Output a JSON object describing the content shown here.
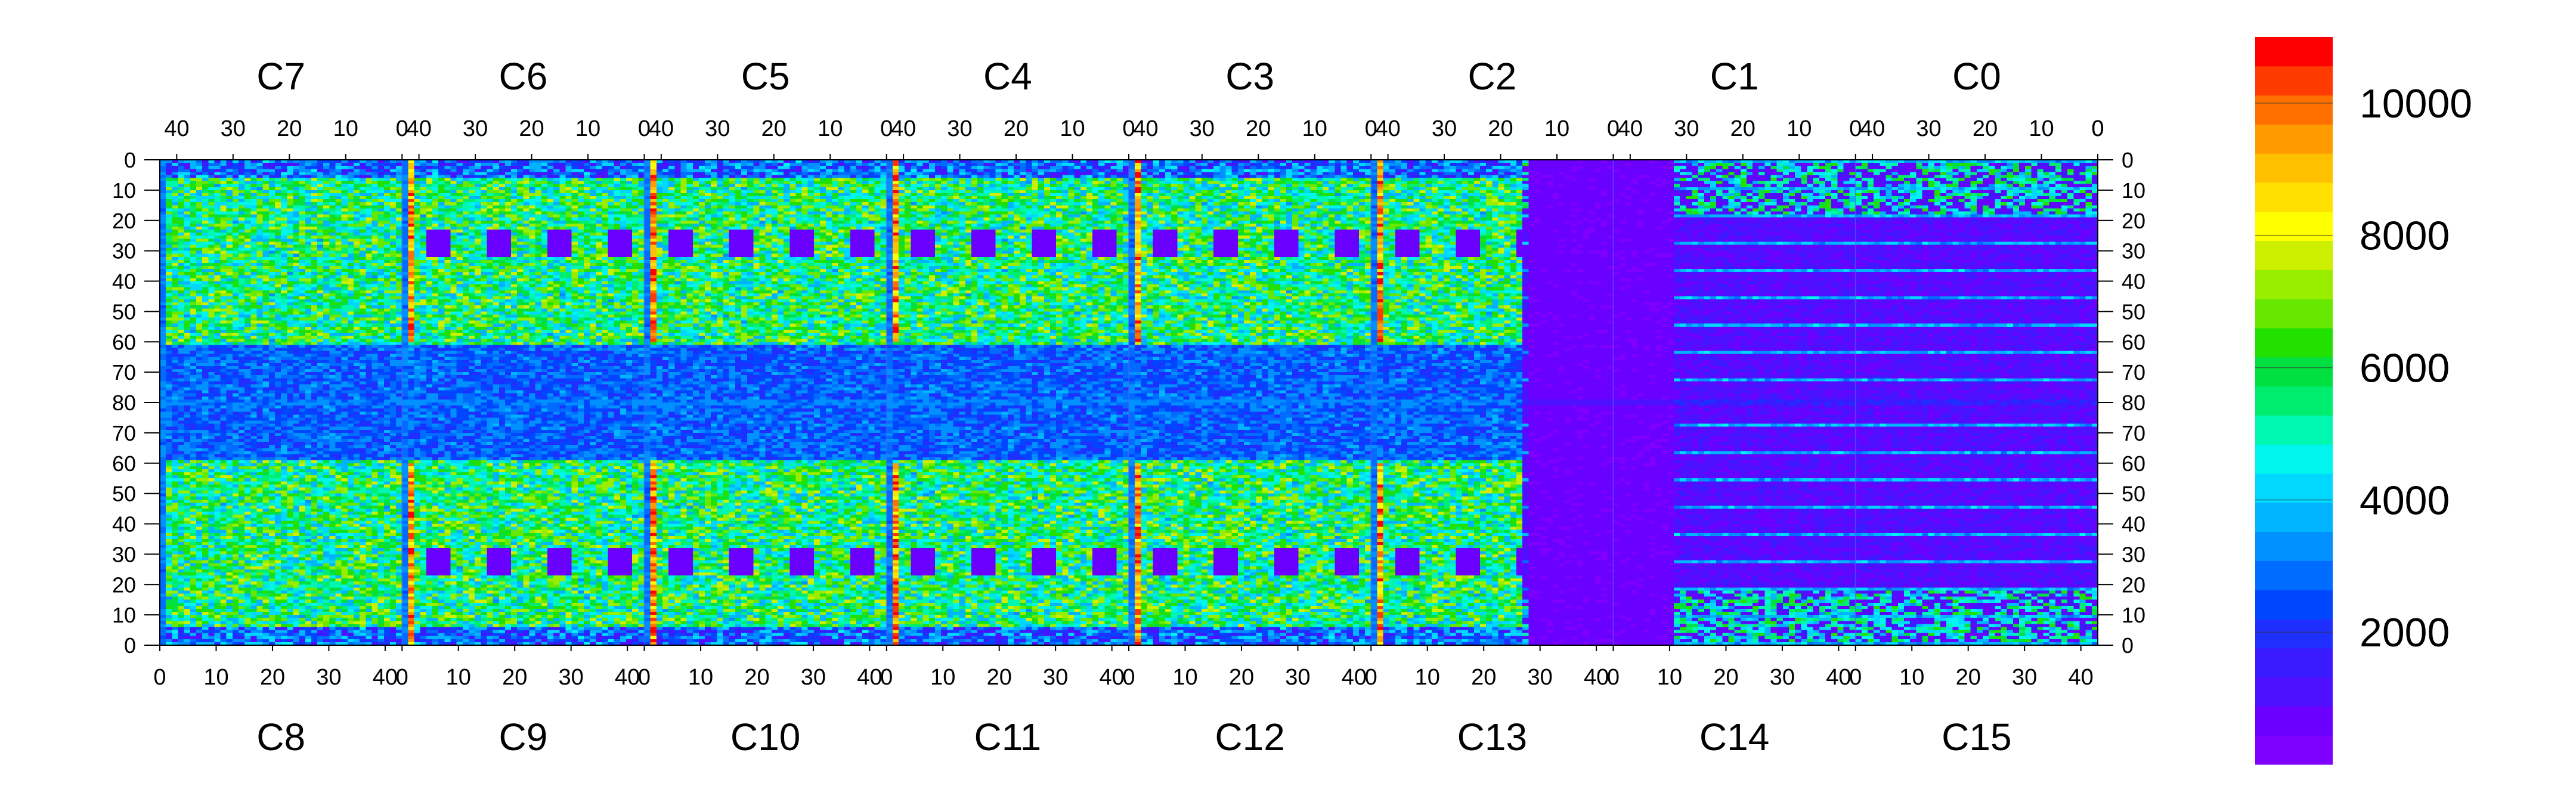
{
  "chart_data": {
    "type": "heatmap",
    "title": "",
    "top_chips": [
      "C7",
      "C6",
      "C5",
      "C4",
      "C3",
      "C2",
      "C1",
      "C0"
    ],
    "bottom_chips": [
      "C8",
      "C9",
      "C10",
      "C11",
      "C12",
      "C13",
      "C14",
      "C15"
    ],
    "top_x_ticks": [
      "40",
      "30",
      "20",
      "10",
      "0"
    ],
    "bottom_x_ticks": [
      "0",
      "10",
      "20",
      "30",
      "40"
    ],
    "y_ticks": [
      "0",
      "10",
      "20",
      "30",
      "40",
      "50",
      "60",
      "70",
      "80",
      "70",
      "60",
      "50",
      "40",
      "30",
      "20",
      "10",
      "0"
    ],
    "colorbar": {
      "range": [
        0,
        11000
      ],
      "tick_labels": [
        "2000",
        "4000",
        "6000",
        "8000",
        "10000"
      ],
      "tick_values": [
        2000,
        4000,
        6000,
        8000,
        10000
      ],
      "colors": [
        "#7f00ff",
        "#6a00ff",
        "#4f10ff",
        "#3a1aff",
        "#1f2fff",
        "#0046ff",
        "#006cff",
        "#0090ff",
        "#00b4ff",
        "#00d8ff",
        "#00f5ee",
        "#00f7b0",
        "#00ee70",
        "#00e040",
        "#22e000",
        "#66e800",
        "#99ee00",
        "#ccf000",
        "#ffff00",
        "#ffe000",
        "#ffc000",
        "#ff9a00",
        "#ff7000",
        "#ff3a00",
        "#ff0000"
      ]
    },
    "grid": false,
    "note_scale": "per-pixel values estimated"
  }
}
